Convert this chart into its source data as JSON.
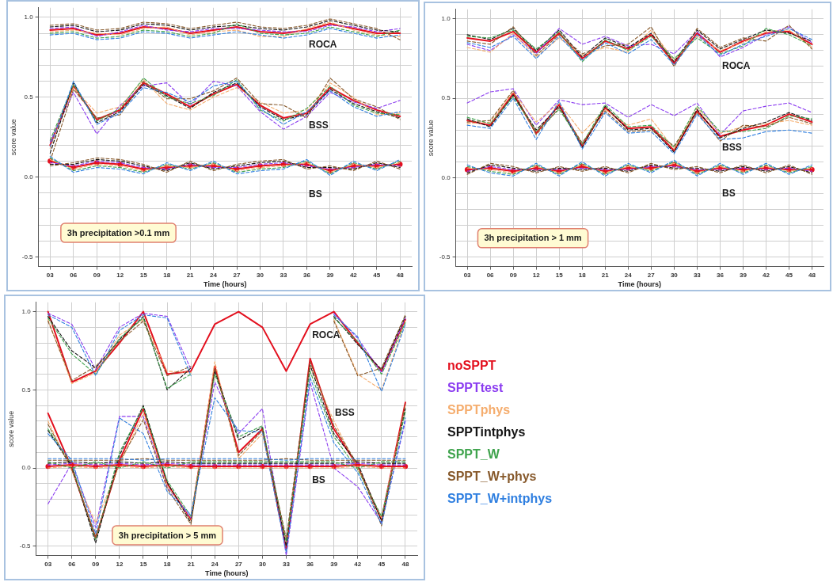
{
  "chart_data": [
    {
      "type": "line",
      "xlabel": "Time (hours)",
      "ylabel": "score value",
      "categories": [
        "03",
        "06",
        "09",
        "12",
        "15",
        "18",
        "21",
        "24",
        "27",
        "30",
        "33",
        "36",
        "39",
        "42",
        "45",
        "48"
      ],
      "ylim": [
        -0.56,
        1.06
      ],
      "yticks": [
        {
          "value": -0.5,
          "label": "-0.5"
        },
        {
          "value": -0.4,
          "label": null
        },
        {
          "value": -0.3,
          "label": null
        },
        {
          "value": -0.2,
          "label": null
        },
        {
          "value": -0.1,
          "label": null
        },
        {
          "value": 0,
          "label": "0.0"
        },
        {
          "value": 0.1,
          "label": null
        },
        {
          "value": 0.2,
          "label": null
        },
        {
          "value": 0.3,
          "label": null
        },
        {
          "value": 0.4,
          "label": null
        },
        {
          "value": 0.5,
          "label": "0.5"
        },
        {
          "value": 0.6,
          "label": null
        },
        {
          "value": 0.7,
          "label": null
        },
        {
          "value": 0.8,
          "label": null
        },
        {
          "value": 0.9,
          "label": null
        },
        {
          "value": 1,
          "label": "1.0"
        }
      ],
      "grid": true,
      "annotations": [
        "3h precipitation >0.1 mm",
        "ROCA",
        "BSS",
        "BS"
      ],
      "series": [
        {
          "color": "#e3101e",
          "line_style": "solid",
          "values": [
            0.92,
            0.93,
            0.89,
            0.9,
            0.94,
            0.93,
            0.9,
            0.92,
            0.94,
            0.91,
            0.9,
            0.92,
            0.96,
            0.93,
            0.9,
            0.9
          ]
        },
        {
          "color": "#8b3cf0",
          "line_style": "dashed",
          "values": [
            0.93,
            0.94,
            0.88,
            0.91,
            0.95,
            0.92,
            0.91,
            0.93,
            0.93,
            0.92,
            0.91,
            0.91,
            0.95,
            0.94,
            0.91,
            0.93
          ]
        },
        {
          "color": "#f5ad6e",
          "line_style": "dashed",
          "values": [
            0.91,
            0.92,
            0.9,
            0.89,
            0.93,
            0.94,
            0.89,
            0.91,
            0.92,
            0.88,
            0.88,
            0.93,
            0.97,
            0.92,
            0.89,
            0.88
          ]
        },
        {
          "color": "#141414",
          "line_style": "dashed",
          "values": [
            0.94,
            0.95,
            0.91,
            0.92,
            0.96,
            0.95,
            0.92,
            0.94,
            0.95,
            0.93,
            0.92,
            0.94,
            0.98,
            0.95,
            0.92,
            0.91
          ]
        },
        {
          "color": "#3fa34d",
          "line_style": "dashed",
          "values": [
            0.9,
            0.91,
            0.87,
            0.88,
            0.92,
            0.91,
            0.88,
            0.9,
            0.96,
            0.9,
            0.89,
            0.9,
            0.94,
            0.91,
            0.88,
            0.92
          ]
        },
        {
          "color": "#86582a",
          "line_style": "dashed",
          "values": [
            0.95,
            0.96,
            0.92,
            0.93,
            0.97,
            0.96,
            0.93,
            0.95,
            0.97,
            0.94,
            0.93,
            0.95,
            0.99,
            0.96,
            0.93,
            0.86
          ]
        },
        {
          "color": "#2f7fe0",
          "line_style": "dashed",
          "values": [
            0.89,
            0.9,
            0.86,
            0.87,
            0.91,
            0.9,
            0.87,
            0.89,
            0.91,
            0.89,
            0.87,
            0.89,
            0.93,
            0.9,
            0.87,
            0.89
          ]
        },
        {
          "color": "#e3101e",
          "line_style": "solid",
          "values": [
            0.2,
            0.57,
            0.36,
            0.42,
            0.59,
            0.52,
            0.44,
            0.52,
            0.58,
            0.45,
            0.37,
            0.4,
            0.56,
            0.48,
            0.42,
            0.38
          ]
        },
        {
          "color": "#8b3cf0",
          "line_style": "dashed",
          "values": [
            0.22,
            0.53,
            0.27,
            0.45,
            0.57,
            0.59,
            0.45,
            0.6,
            0.57,
            0.41,
            0.3,
            0.38,
            0.53,
            0.47,
            0.43,
            0.48
          ]
        },
        {
          "color": "#f5ad6e",
          "line_style": "dashed",
          "values": [
            0.18,
            0.56,
            0.4,
            0.44,
            0.61,
            0.46,
            0.42,
            0.5,
            0.56,
            0.47,
            0.4,
            0.42,
            0.59,
            0.5,
            0.39,
            0.4
          ]
        },
        {
          "color": "#141414",
          "line_style": "dashed",
          "values": [
            0.15,
            0.59,
            0.34,
            0.41,
            0.58,
            0.51,
            0.43,
            0.53,
            0.59,
            0.44,
            0.36,
            0.39,
            0.55,
            0.46,
            0.41,
            0.37
          ]
        },
        {
          "color": "#3fa34d",
          "line_style": "dashed",
          "values": [
            0.23,
            0.58,
            0.35,
            0.43,
            0.62,
            0.5,
            0.46,
            0.51,
            0.61,
            0.42,
            0.35,
            0.43,
            0.57,
            0.45,
            0.4,
            0.39
          ]
        },
        {
          "color": "#86582a",
          "line_style": "dashed",
          "values": [
            0.1,
            0.55,
            0.37,
            0.39,
            0.6,
            0.49,
            0.49,
            0.54,
            0.62,
            0.46,
            0.45,
            0.37,
            0.62,
            0.49,
            0.44,
            0.36
          ]
        },
        {
          "color": "#2f7fe0",
          "line_style": "dashed",
          "values": [
            0.19,
            0.6,
            0.33,
            0.4,
            0.56,
            0.53,
            0.47,
            0.57,
            0.6,
            0.43,
            0.33,
            0.41,
            0.54,
            0.44,
            0.38,
            0.41
          ]
        },
        {
          "color": "#e3101e",
          "line_style": "solid",
          "marker": "circle",
          "values": [
            0.1,
            0.06,
            0.09,
            0.08,
            0.05,
            0.06,
            0.07,
            0.07,
            0.05,
            0.07,
            0.08,
            0.08,
            0.04,
            0.07,
            0.07,
            0.08
          ]
        },
        {
          "color": "#8b3cf0",
          "line_style": "dashed",
          "values": [
            0.09,
            0.07,
            0.1,
            0.09,
            0.06,
            0.05,
            0.08,
            0.06,
            0.06,
            0.08,
            0.09,
            0.07,
            0.05,
            0.06,
            0.08,
            0.07
          ]
        },
        {
          "color": "#f5ad6e",
          "line_style": "dashed",
          "values": [
            0.11,
            0.05,
            0.08,
            0.07,
            0.04,
            0.07,
            0.06,
            0.08,
            0.04,
            0.06,
            0.07,
            0.09,
            0.03,
            0.08,
            0.06,
            0.09
          ]
        },
        {
          "color": "#141414",
          "line_style": "dashed",
          "values": [
            0.08,
            0.08,
            0.11,
            0.1,
            0.07,
            0.04,
            0.09,
            0.05,
            0.07,
            0.09,
            0.1,
            0.06,
            0.06,
            0.05,
            0.09,
            0.06
          ]
        },
        {
          "color": "#3fa34d",
          "line_style": "dashed",
          "values": [
            0.12,
            0.04,
            0.07,
            0.06,
            0.03,
            0.08,
            0.05,
            0.09,
            0.03,
            0.05,
            0.06,
            0.1,
            0.02,
            0.09,
            0.05,
            0.1
          ]
        },
        {
          "color": "#86582a",
          "line_style": "dashed",
          "values": [
            0.07,
            0.09,
            0.12,
            0.11,
            0.08,
            0.03,
            0.1,
            0.04,
            0.08,
            0.1,
            0.11,
            0.05,
            0.07,
            0.04,
            0.1,
            0.05
          ]
        },
        {
          "color": "#2f7fe0",
          "line_style": "dashed",
          "values": [
            0.13,
            0.03,
            0.06,
            0.05,
            0.02,
            0.09,
            0.04,
            0.1,
            0.02,
            0.04,
            0.05,
            0.11,
            0.01,
            0.1,
            0.04,
            0.11
          ]
        }
      ]
    },
    {
      "type": "line",
      "xlabel": "Time (hours)",
      "ylabel": "score value",
      "categories": [
        "03",
        "06",
        "09",
        "12",
        "15",
        "18",
        "21",
        "24",
        "27",
        "30",
        "33",
        "36",
        "39",
        "42",
        "45",
        "48"
      ],
      "ylim": [
        -0.56,
        1.06
      ],
      "yticks": [
        {
          "value": -0.5,
          "label": "-0.5"
        },
        {
          "value": -0.4,
          "label": null
        },
        {
          "value": -0.3,
          "label": null
        },
        {
          "value": -0.2,
          "label": null
        },
        {
          "value": -0.1,
          "label": null
        },
        {
          "value": 0,
          "label": "0.0"
        },
        {
          "value": 0.1,
          "label": null
        },
        {
          "value": 0.2,
          "label": null
        },
        {
          "value": 0.3,
          "label": null
        },
        {
          "value": 0.4,
          "label": null
        },
        {
          "value": 0.5,
          "label": "0.5"
        },
        {
          "value": 0.6,
          "label": null
        },
        {
          "value": 0.7,
          "label": null
        },
        {
          "value": 0.8,
          "label": null
        },
        {
          "value": 0.9,
          "label": null
        },
        {
          "value": 1,
          "label": "1.0"
        }
      ],
      "grid": true,
      "annotations": [
        "3h precipitation > 1 mm",
        "ROCA",
        "BSS",
        "BS"
      ],
      "series": [
        {
          "color": "#e3101e",
          "line_style": "solid",
          "values": [
            0.88,
            0.86,
            0.92,
            0.79,
            0.91,
            0.75,
            0.86,
            0.81,
            0.9,
            0.72,
            0.91,
            0.79,
            0.86,
            0.91,
            0.92,
            0.84
          ]
        },
        {
          "color": "#8b3cf0",
          "line_style": "dashed",
          "values": [
            0.84,
            0.8,
            0.9,
            0.78,
            0.94,
            0.84,
            0.89,
            0.83,
            0.84,
            0.78,
            0.92,
            0.76,
            0.82,
            0.9,
            0.95,
            0.85
          ]
        },
        {
          "color": "#f5ad6e",
          "line_style": "dashed",
          "values": [
            0.82,
            0.79,
            0.91,
            0.76,
            0.88,
            0.77,
            0.82,
            0.79,
            0.93,
            0.74,
            0.89,
            0.8,
            0.85,
            0.92,
            0.93,
            0.82
          ]
        },
        {
          "color": "#141414",
          "line_style": "dashed",
          "values": [
            0.9,
            0.87,
            0.94,
            0.8,
            0.93,
            0.76,
            0.88,
            0.82,
            0.91,
            0.73,
            0.93,
            0.81,
            0.87,
            0.93,
            0.91,
            0.86
          ]
        },
        {
          "color": "#3fa34d",
          "line_style": "dashed",
          "values": [
            0.89,
            0.88,
            0.93,
            0.81,
            0.92,
            0.73,
            0.87,
            0.8,
            0.89,
            0.75,
            0.88,
            0.78,
            0.83,
            0.94,
            0.9,
            0.83
          ]
        },
        {
          "color": "#86582a",
          "line_style": "dashed",
          "values": [
            0.86,
            0.84,
            0.95,
            0.77,
            0.9,
            0.78,
            0.83,
            0.84,
            0.95,
            0.7,
            0.94,
            0.82,
            0.88,
            0.86,
            0.96,
            0.81
          ]
        },
        {
          "color": "#2f7fe0",
          "line_style": "dashed",
          "values": [
            0.85,
            0.82,
            0.89,
            0.75,
            0.89,
            0.74,
            0.85,
            0.78,
            0.87,
            0.71,
            0.9,
            0.77,
            0.84,
            0.89,
            0.94,
            0.87
          ]
        },
        {
          "color": "#e3101e",
          "line_style": "solid",
          "values": [
            0.36,
            0.33,
            0.53,
            0.28,
            0.46,
            0.2,
            0.44,
            0.31,
            0.32,
            0.17,
            0.42,
            0.26,
            0.3,
            0.33,
            0.4,
            0.35
          ]
        },
        {
          "color": "#8b3cf0",
          "line_style": "dashed",
          "values": [
            0.47,
            0.54,
            0.56,
            0.33,
            0.49,
            0.46,
            0.47,
            0.38,
            0.46,
            0.39,
            0.47,
            0.27,
            0.42,
            0.45,
            0.47,
            0.41
          ]
        },
        {
          "color": "#f5ad6e",
          "line_style": "dashed",
          "values": [
            0.34,
            0.35,
            0.54,
            0.35,
            0.47,
            0.28,
            0.43,
            0.33,
            0.37,
            0.18,
            0.44,
            0.28,
            0.32,
            0.34,
            0.36,
            0.33
          ]
        },
        {
          "color": "#141414",
          "line_style": "dashed",
          "values": [
            0.37,
            0.32,
            0.52,
            0.3,
            0.45,
            0.19,
            0.45,
            0.3,
            0.31,
            0.16,
            0.43,
            0.25,
            0.31,
            0.35,
            0.41,
            0.36
          ]
        },
        {
          "color": "#3fa34d",
          "line_style": "dashed",
          "values": [
            0.38,
            0.34,
            0.51,
            0.29,
            0.43,
            0.21,
            0.46,
            0.32,
            0.33,
            0.19,
            0.45,
            0.29,
            0.29,
            0.31,
            0.39,
            0.37
          ]
        },
        {
          "color": "#86582a",
          "line_style": "dashed",
          "values": [
            0.35,
            0.36,
            0.55,
            0.27,
            0.44,
            0.22,
            0.42,
            0.29,
            0.3,
            0.2,
            0.41,
            0.23,
            0.33,
            0.32,
            0.38,
            0.34
          ]
        },
        {
          "color": "#2f7fe0",
          "line_style": "dashed",
          "values": [
            0.33,
            0.31,
            0.5,
            0.24,
            0.48,
            0.18,
            0.41,
            0.28,
            0.29,
            0.15,
            0.4,
            0.24,
            0.25,
            0.29,
            0.3,
            0.28
          ]
        },
        {
          "color": "#e3101e",
          "line_style": "solid",
          "marker": "circle",
          "values": [
            0.05,
            0.06,
            0.04,
            0.06,
            0.04,
            0.07,
            0.04,
            0.06,
            0.06,
            0.08,
            0.04,
            0.06,
            0.05,
            0.06,
            0.05,
            0.05
          ]
        },
        {
          "color": "#8b3cf0",
          "line_style": "dashed",
          "values": [
            0.04,
            0.07,
            0.05,
            0.05,
            0.05,
            0.06,
            0.05,
            0.05,
            0.07,
            0.07,
            0.05,
            0.05,
            0.06,
            0.05,
            0.06,
            0.04
          ]
        },
        {
          "color": "#f5ad6e",
          "line_style": "dashed",
          "values": [
            0.06,
            0.05,
            0.03,
            0.07,
            0.03,
            0.08,
            0.03,
            0.07,
            0.05,
            0.09,
            0.03,
            0.07,
            0.04,
            0.07,
            0.04,
            0.06
          ]
        },
        {
          "color": "#141414",
          "line_style": "dashed",
          "values": [
            0.03,
            0.08,
            0.06,
            0.04,
            0.06,
            0.05,
            0.06,
            0.04,
            0.08,
            0.06,
            0.06,
            0.04,
            0.07,
            0.04,
            0.07,
            0.03
          ]
        },
        {
          "color": "#3fa34d",
          "line_style": "dashed",
          "values": [
            0.07,
            0.04,
            0.02,
            0.08,
            0.02,
            0.09,
            0.02,
            0.08,
            0.04,
            0.1,
            0.02,
            0.08,
            0.03,
            0.08,
            0.03,
            0.07
          ]
        },
        {
          "color": "#86582a",
          "line_style": "dashed",
          "values": [
            0.02,
            0.09,
            0.07,
            0.03,
            0.07,
            0.04,
            0.07,
            0.03,
            0.09,
            0.05,
            0.07,
            0.03,
            0.08,
            0.03,
            0.08,
            0.02
          ]
        },
        {
          "color": "#2f7fe0",
          "line_style": "dashed",
          "values": [
            0.08,
            0.03,
            0.01,
            0.09,
            0.01,
            0.1,
            0.01,
            0.09,
            0.03,
            0.11,
            0.01,
            0.09,
            0.02,
            0.09,
            0.02,
            0.08
          ]
        }
      ]
    },
    {
      "type": "line",
      "xlabel": "Time (hours)",
      "ylabel": "score value",
      "categories": [
        "03",
        "06",
        "09",
        "12",
        "15",
        "18",
        "21",
        "24",
        "27",
        "30",
        "33",
        "36",
        "39",
        "42",
        "45",
        "48"
      ],
      "ylim": [
        -0.56,
        1.06
      ],
      "yticks": [
        {
          "value": -0.5,
          "label": "-0.5"
        },
        {
          "value": -0.4,
          "label": null
        },
        {
          "value": -0.3,
          "label": null
        },
        {
          "value": -0.2,
          "label": null
        },
        {
          "value": -0.1,
          "label": null
        },
        {
          "value": 0,
          "label": "0.0"
        },
        {
          "value": 0.1,
          "label": null
        },
        {
          "value": 0.2,
          "label": null
        },
        {
          "value": 0.3,
          "label": null
        },
        {
          "value": 0.4,
          "label": null
        },
        {
          "value": 0.5,
          "label": "0.5"
        },
        {
          "value": 0.6,
          "label": null
        },
        {
          "value": 0.7,
          "label": null
        },
        {
          "value": 0.8,
          "label": null
        },
        {
          "value": 0.9,
          "label": null
        },
        {
          "value": 1,
          "label": "1.0"
        }
      ],
      "grid": true,
      "legend": "right",
      "annotations": [
        "3h precipitation > 5 mm",
        "ROCA",
        "BSS",
        "BS"
      ],
      "series": [
        {
          "name": "noSPPT",
          "color": "#e3101e",
          "line_style": "solid",
          "values": [
            1.0,
            0.55,
            0.62,
            0.8,
            1.0,
            0.6,
            0.62,
            0.92,
            1.0,
            0.9,
            0.62,
            0.92,
            1.0,
            0.8,
            0.62,
            0.95
          ]
        },
        {
          "name": "SPPTtest",
          "color": "#8b3cf0",
          "line_style": "dashed",
          "values": [
            0.99,
            0.92,
            0.63,
            0.9,
            0.99,
            0.97,
            0.63,
            null,
            null,
            null,
            null,
            null,
            0.99,
            0.83,
            0.61,
            0.96
          ]
        },
        {
          "name": "SPPTphys",
          "color": "#f5ad6e",
          "line_style": "dashed",
          "values": [
            0.95,
            0.54,
            0.61,
            0.85,
            0.95,
            0.62,
            0.61,
            null,
            null,
            null,
            null,
            null,
            0.95,
            0.6,
            0.5,
            0.94
          ]
        },
        {
          "name": "SPPTintphys",
          "color": "#141414",
          "line_style": "dashed",
          "values": [
            0.97,
            0.75,
            0.64,
            0.82,
            0.97,
            0.5,
            0.64,
            null,
            null,
            null,
            null,
            null,
            0.97,
            0.79,
            0.63,
            0.97
          ]
        },
        {
          "name": "SPPT_W",
          "color": "#3fa34d",
          "line_style": "dashed",
          "values": [
            0.96,
            0.73,
            0.6,
            0.83,
            0.96,
            0.51,
            0.6,
            null,
            null,
            null,
            null,
            null,
            0.96,
            0.81,
            0.6,
            0.93
          ]
        },
        {
          "name": "SPPT_W+phys",
          "color": "#86582a",
          "line_style": "dashed",
          "values": [
            0.94,
            0.56,
            0.65,
            0.81,
            0.94,
            0.59,
            0.65,
            null,
            null,
            null,
            null,
            null,
            0.94,
            0.59,
            0.64,
            0.98
          ]
        },
        {
          "name": "SPPT_W+intphys",
          "color": "#2f7fe0",
          "line_style": "dashed",
          "values": [
            0.98,
            0.9,
            0.59,
            0.88,
            0.98,
            0.96,
            0.59,
            null,
            null,
            null,
            null,
            null,
            0.98,
            0.84,
            0.49,
            0.92
          ]
        },
        {
          "color": "#e3101e",
          "line_style": "solid",
          "values": [
            0.35,
            0.0,
            -0.45,
            0.05,
            0.38,
            -0.1,
            -0.33,
            0.65,
            0.1,
            0.25,
            -0.52,
            0.7,
            0.25,
            0.01,
            -0.33,
            0.42
          ]
        },
        {
          "color": "#8b3cf0",
          "line_style": "dashed",
          "values": [
            -0.23,
            0.03,
            -0.38,
            0.33,
            0.33,
            -0.12,
            -0.32,
            0.55,
            0.22,
            0.38,
            -0.56,
            0.55,
            0.0,
            -0.12,
            -0.35,
            0.3
          ]
        },
        {
          "color": "#f5ad6e",
          "line_style": "dashed",
          "values": [
            0.3,
            -0.02,
            -0.35,
            0.02,
            0.35,
            -0.11,
            -0.34,
            0.68,
            0.06,
            0.22,
            -0.48,
            0.65,
            0.3,
            0.0,
            -0.32,
            0.4
          ]
        },
        {
          "color": "#141414",
          "line_style": "dashed",
          "values": [
            0.24,
            0.01,
            -0.48,
            0.08,
            0.4,
            -0.09,
            -0.35,
            0.62,
            0.18,
            0.26,
            -0.5,
            0.66,
            0.22,
            0.03,
            -0.34,
            0.38
          ]
        },
        {
          "color": "#3fa34d",
          "line_style": "dashed",
          "values": [
            0.25,
            0.02,
            -0.46,
            0.1,
            0.39,
            -0.08,
            -0.31,
            0.6,
            0.2,
            0.27,
            -0.47,
            0.62,
            0.2,
            -0.01,
            -0.31,
            0.36
          ]
        },
        {
          "color": "#86582a",
          "line_style": "dashed",
          "values": [
            0.28,
            -0.01,
            -0.44,
            0.04,
            0.31,
            -0.13,
            -0.36,
            0.64,
            0.08,
            0.24,
            -0.45,
            0.68,
            0.27,
            0.02,
            -0.37,
            0.41
          ]
        },
        {
          "color": "#2f7fe0",
          "line_style": "dashed",
          "values": [
            0.22,
            0.05,
            -0.42,
            0.32,
            0.22,
            -0.15,
            -0.3,
            0.45,
            0.24,
            0.23,
            -0.54,
            0.58,
            0.16,
            -0.03,
            -0.36,
            0.32
          ]
        },
        {
          "color": "#e3101e",
          "line_style": "solid",
          "marker": "circle",
          "values": [
            0.01,
            0.02,
            0.01,
            0.02,
            0.01,
            0.02,
            0.01,
            0.01,
            0.01,
            0.01,
            0.01,
            0.01,
            0.01,
            0.02,
            0.01,
            0.01
          ]
        },
        {
          "color": "#8b3cf0",
          "line_style": "dashed",
          "values": [
            0.02,
            0.03,
            0.02,
            0.03,
            0.02,
            0.03,
            0.02,
            0.02,
            0.02,
            0.02,
            0.02,
            0.02,
            0.02,
            0.03,
            0.02,
            0.02
          ]
        },
        {
          "color": "#f5ad6e",
          "line_style": "dashed",
          "values": [
            0.0,
            0.01,
            0.0,
            0.01,
            0.0,
            0.01,
            0.0,
            0.0,
            0.0,
            0.0,
            0.0,
            0.0,
            0.0,
            0.01,
            0.0,
            0.0
          ]
        },
        {
          "color": "#141414",
          "line_style": "dashed",
          "values": [
            0.03,
            0.04,
            0.03,
            0.04,
            0.03,
            0.04,
            0.03,
            0.03,
            0.03,
            0.03,
            0.03,
            0.03,
            0.03,
            0.04,
            0.03,
            0.03
          ]
        },
        {
          "color": "#3fa34d",
          "line_style": "dashed",
          "values": [
            0.04,
            0.0,
            0.04,
            0.0,
            0.04,
            0.0,
            0.04,
            0.04,
            0.04,
            0.04,
            0.04,
            0.04,
            0.04,
            0.0,
            0.04,
            0.04
          ]
        },
        {
          "color": "#86582a",
          "line_style": "dashed",
          "values": [
            0.05,
            0.05,
            0.05,
            0.05,
            0.06,
            0.05,
            0.05,
            0.05,
            0.05,
            0.05,
            0.06,
            0.05,
            0.05,
            0.05,
            0.05,
            0.05
          ]
        },
        {
          "color": "#2f7fe0",
          "line_style": "dashed",
          "values": [
            0.06,
            0.06,
            0.06,
            0.06,
            0.05,
            0.06,
            0.06,
            0.06,
            0.06,
            0.06,
            0.05,
            0.06,
            0.06,
            0.06,
            0.06,
            0.06
          ]
        }
      ]
    }
  ]
}
